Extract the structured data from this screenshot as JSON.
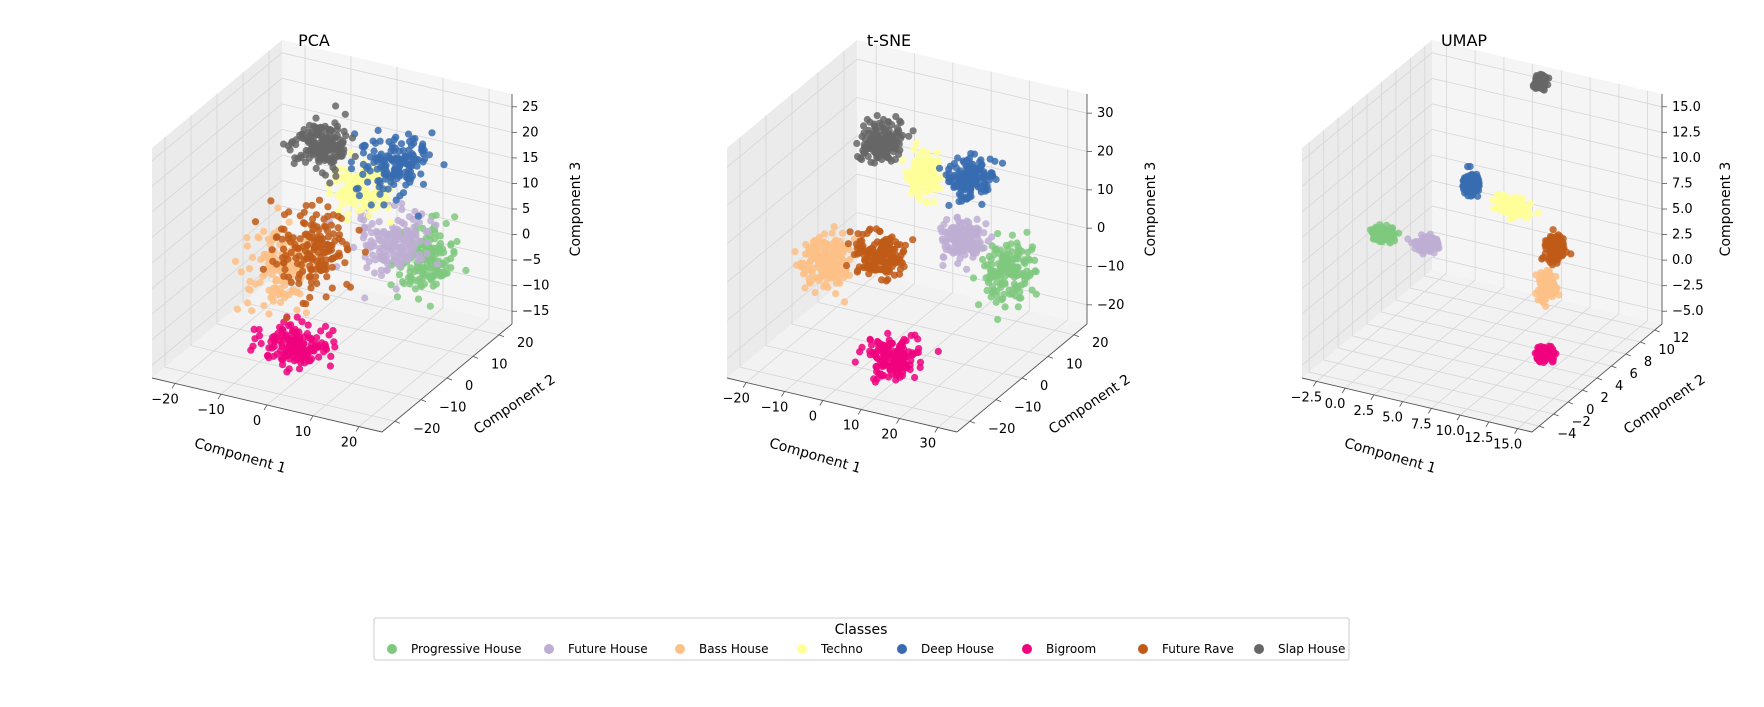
{
  "classes": [
    {
      "name": "Progressive House",
      "color": "#7fc97f"
    },
    {
      "name": "Future House",
      "color": "#beaed4"
    },
    {
      "name": "Bass House",
      "color": "#fdc086"
    },
    {
      "name": "Techno",
      "color": "#ffff99"
    },
    {
      "name": "Deep House",
      "color": "#386cb0"
    },
    {
      "name": "Bigroom",
      "color": "#f0027f"
    },
    {
      "name": "Future Rave",
      "color": "#bf5b17"
    },
    {
      "name": "Slap House",
      "color": "#666666"
    }
  ],
  "legend": {
    "title": "Classes",
    "placement": "bottom-center"
  },
  "chart_data": [
    {
      "type": "scatter",
      "projection": "3d",
      "title": "PCA",
      "xlabel": "Component 1",
      "ylabel": "Component 2",
      "zlabel": "Component 3",
      "xticks": [
        "−20",
        "−10",
        "0",
        "10",
        "20"
      ],
      "yticks": [
        "−20",
        "−10",
        "0",
        "10",
        "20"
      ],
      "zticks": [
        "−15",
        "−10",
        "−5",
        "0",
        "5",
        "10",
        "15",
        "20",
        "25"
      ],
      "xlim": [
        -25,
        27
      ],
      "ylim": [
        -25,
        22
      ],
      "zlim": [
        -18,
        26
      ],
      "grid": true,
      "series": [
        {
          "name": "Progressive House",
          "center": [
            18,
            5,
            0
          ],
          "spread": [
            5,
            6,
            5
          ]
        },
        {
          "name": "Future House",
          "center": [
            12,
            3,
            3
          ],
          "spread": [
            6,
            6,
            5
          ]
        },
        {
          "name": "Bass House",
          "center": [
            -8,
            -5,
            -2
          ],
          "spread": [
            6,
            6,
            6
          ]
        },
        {
          "name": "Techno",
          "center": [
            3,
            6,
            10
          ],
          "spread": [
            5,
            5,
            4
          ]
        },
        {
          "name": "Deep House",
          "center": [
            8,
            10,
            14
          ],
          "spread": [
            6,
            6,
            4
          ]
        },
        {
          "name": "Bigroom",
          "center": [
            -2,
            -10,
            -14
          ],
          "spread": [
            6,
            4,
            3
          ]
        },
        {
          "name": "Future Rave",
          "center": [
            -3,
            -2,
            0
          ],
          "spread": [
            7,
            6,
            7
          ]
        },
        {
          "name": "Slap House",
          "center": [
            -7,
            8,
            16
          ],
          "spread": [
            5,
            5,
            4
          ]
        }
      ]
    },
    {
      "type": "scatter",
      "projection": "3d",
      "title": "t-SNE",
      "xlabel": "Component 1",
      "ylabel": "Component 2",
      "zlabel": "Component 3",
      "xticks": [
        "−20",
        "−10",
        "0",
        "10",
        "20",
        "30"
      ],
      "yticks": [
        "−20",
        "−10",
        "0",
        "10",
        "20"
      ],
      "zticks": [
        "−20",
        "−10",
        "0",
        "10",
        "20",
        "30"
      ],
      "xlim": [
        -27,
        31
      ],
      "ylim": [
        -25,
        25
      ],
      "zlim": [
        -22,
        32
      ],
      "grid": true,
      "series": [
        {
          "name": "Progressive House",
          "center": [
            22,
            8,
            -3
          ],
          "spread": [
            5,
            5,
            6
          ]
        },
        {
          "name": "Future House",
          "center": [
            12,
            6,
            3
          ],
          "spread": [
            4,
            4,
            4
          ]
        },
        {
          "name": "Bass House",
          "center": [
            -15,
            -5,
            -2
          ],
          "spread": [
            5,
            5,
            5
          ]
        },
        {
          "name": "Techno",
          "center": [
            0,
            10,
            14
          ],
          "spread": [
            3,
            3,
            4
          ]
        },
        {
          "name": "Deep House",
          "center": [
            10,
            12,
            14
          ],
          "spread": [
            4,
            4,
            4
          ]
        },
        {
          "name": "Bigroom",
          "center": [
            5,
            -10,
            -18
          ],
          "spread": [
            5,
            4,
            4
          ]
        },
        {
          "name": "Future Rave",
          "center": [
            -4,
            -2,
            0
          ],
          "spread": [
            5,
            4,
            4
          ]
        },
        {
          "name": "Slap House",
          "center": [
            -12,
            12,
            18
          ],
          "spread": [
            4,
            4,
            4
          ]
        }
      ]
    },
    {
      "type": "scatter",
      "projection": "3d",
      "title": "UMAP",
      "xlabel": "Component 1",
      "ylabel": "Component 2",
      "zlabel": "Component 3",
      "xticks": [
        "−2.5",
        "0.0",
        "2.5",
        "5.0",
        "7.5",
        "10.0",
        "12.5",
        "15.0"
      ],
      "yticks": [
        "−4",
        "−2",
        "0",
        "2",
        "4",
        "6",
        "8",
        "10",
        "12"
      ],
      "zticks": [
        "−5.0",
        "−2.5",
        "0.0",
        "2.5",
        "5.0",
        "7.5",
        "10.0",
        "12.5",
        "15.0"
      ],
      "xlim": [
        -4,
        17
      ],
      "ylim": [
        -4,
        12
      ],
      "zlim": [
        -6,
        16
      ],
      "grid": true,
      "series": [
        {
          "name": "Progressive House",
          "center": [
            -2.5,
            4,
            3
          ],
          "spread": [
            0.8,
            0.6,
            0.4
          ]
        },
        {
          "name": "Future House",
          "center": [
            1.5,
            4,
            3
          ],
          "spread": [
            0.8,
            0.5,
            0.5
          ]
        },
        {
          "name": "Bass House",
          "center": [
            11,
            6,
            0
          ],
          "spread": [
            0.6,
            0.6,
            1.2
          ]
        },
        {
          "name": "Techno",
          "center": [
            7,
            7,
            6
          ],
          "spread": [
            1.2,
            0.6,
            0.6
          ]
        },
        {
          "name": "Deep House",
          "center": [
            4,
            6,
            8
          ],
          "spread": [
            0.6,
            0.5,
            0.8
          ]
        },
        {
          "name": "Bigroom",
          "center": [
            13,
            3,
            -4
          ],
          "spread": [
            0.6,
            0.5,
            0.5
          ]
        },
        {
          "name": "Future Rave",
          "center": [
            11,
            7,
            3
          ],
          "spread": [
            0.6,
            0.6,
            1.0
          ]
        },
        {
          "name": "Slap House",
          "center": [
            6,
            12,
            14.5
          ],
          "spread": [
            0.4,
            0.4,
            0.5
          ]
        }
      ]
    }
  ]
}
